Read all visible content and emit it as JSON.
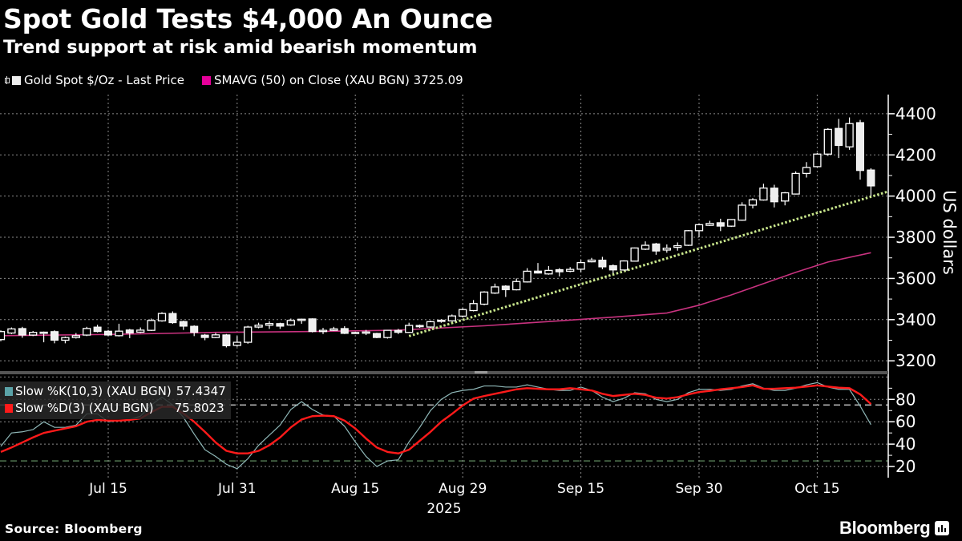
{
  "title": "Spot Gold Tests $4,000 An Ounce",
  "subtitle": "Trend support at risk amid bearish momentum",
  "legend": {
    "price_label": "Gold Spot $/Oz - Last Price",
    "sma_label": "SMAVG (50)  on Close (XAU BGN) 3725.09"
  },
  "stoch_legend": {
    "k_label": "Slow %K(10,3) (XAU BGN)",
    "k_value": "57.4347",
    "d_label": "Slow %D(3) (XAU BGN)",
    "d_value": "75.8023"
  },
  "footer": {
    "source": "Source: Bloomberg",
    "brand": "Bloomberg"
  },
  "colors": {
    "background": "#000000",
    "candle": "#ffffff",
    "sma": "#c8327f",
    "sma_legend": "#e6009a",
    "trendline": "#c8e68c",
    "stoch_k": "#8fb8b8",
    "stoch_k_legend": "#5ba3a8",
    "stoch_d": "#ff1a1a",
    "grid": "#8a8a8a"
  },
  "chart_data": [
    {
      "type": "candlestick",
      "ylabel": "US dollars",
      "ylim": [
        3154,
        4493
      ],
      "y_ticks": [
        "3200",
        "3400",
        "3600",
        "3800",
        "4000",
        "4200",
        "4400"
      ],
      "x_ticks": [
        {
          "label": "Jul 15",
          "date": "2025-07-15"
        },
        {
          "label": "Jul 31",
          "date": "2025-07-31"
        },
        {
          "label": "Aug 15",
          "date": "2025-08-15"
        },
        {
          "label": "Aug 29",
          "date": "2025-08-29"
        },
        {
          "label": "Sep 15",
          "date": "2025-09-15"
        },
        {
          "label": "Sep 30",
          "date": "2025-09-30"
        },
        {
          "label": "Oct 15",
          "date": "2025-10-15"
        }
      ],
      "x_year_label": "2025",
      "grid": true,
      "candle_fields": [
        "date",
        "open",
        "high",
        "low",
        "close"
      ],
      "candles": [
        [
          "2025-07-01",
          3303,
          3348,
          3295,
          3342
        ],
        [
          "2025-07-02",
          3335,
          3362,
          3330,
          3355
        ],
        [
          "2025-07-03",
          3357,
          3365,
          3312,
          3325
        ],
        [
          "2025-07-04",
          3325,
          3345,
          3320,
          3338
        ],
        [
          "2025-07-07",
          3337,
          3342,
          3290,
          3339
        ],
        [
          "2025-07-08",
          3342,
          3348,
          3285,
          3300
        ],
        [
          "2025-07-09",
          3300,
          3318,
          3285,
          3313
        ],
        [
          "2025-07-10",
          3313,
          3335,
          3308,
          3322
        ],
        [
          "2025-07-11",
          3325,
          3365,
          3320,
          3357
        ],
        [
          "2025-07-14",
          3364,
          3375,
          3338,
          3342
        ],
        [
          "2025-07-15",
          3344,
          3350,
          3320,
          3325
        ],
        [
          "2025-07-16",
          3322,
          3380,
          3318,
          3344
        ],
        [
          "2025-07-17",
          3350,
          3355,
          3310,
          3335
        ],
        [
          "2025-07-18",
          3339,
          3362,
          3335,
          3349
        ],
        [
          "2025-07-21",
          3348,
          3405,
          3345,
          3396
        ],
        [
          "2025-07-22",
          3394,
          3436,
          3390,
          3430
        ],
        [
          "2025-07-23",
          3430,
          3440,
          3380,
          3385
        ],
        [
          "2025-07-24",
          3391,
          3395,
          3350,
          3368
        ],
        [
          "2025-07-25",
          3368,
          3372,
          3320,
          3338
        ],
        [
          "2025-07-28",
          3325,
          3330,
          3300,
          3313
        ],
        [
          "2025-07-29",
          3313,
          3335,
          3310,
          3326
        ],
        [
          "2025-07-30",
          3326,
          3330,
          3265,
          3273
        ],
        [
          "2025-07-31",
          3275,
          3320,
          3268,
          3290
        ],
        [
          "2025-08-01",
          3290,
          3370,
          3283,
          3364
        ],
        [
          "2025-08-04",
          3364,
          3385,
          3358,
          3373
        ],
        [
          "2025-08-05",
          3373,
          3392,
          3355,
          3381
        ],
        [
          "2025-08-06",
          3381,
          3385,
          3355,
          3368
        ],
        [
          "2025-08-07",
          3374,
          3405,
          3370,
          3396
        ],
        [
          "2025-08-08",
          3400,
          3405,
          3380,
          3402
        ],
        [
          "2025-08-11",
          3404,
          3406,
          3338,
          3342
        ],
        [
          "2025-08-12",
          3345,
          3360,
          3330,
          3348
        ],
        [
          "2025-08-13",
          3348,
          3365,
          3345,
          3355
        ],
        [
          "2025-08-14",
          3357,
          3368,
          3330,
          3333
        ],
        [
          "2025-08-15",
          3338,
          3340,
          3335,
          3337
        ],
        [
          "2025-08-18",
          3335,
          3350,
          3325,
          3340
        ],
        [
          "2025-08-19",
          3333,
          3336,
          3310,
          3313
        ],
        [
          "2025-08-20",
          3313,
          3350,
          3308,
          3348
        ],
        [
          "2025-08-21",
          3348,
          3355,
          3330,
          3338
        ],
        [
          "2025-08-22",
          3338,
          3385,
          3335,
          3372
        ],
        [
          "2025-08-25",
          3372,
          3376,
          3360,
          3365
        ],
        [
          "2025-08-26",
          3364,
          3395,
          3360,
          3390
        ],
        [
          "2025-08-27",
          3394,
          3402,
          3385,
          3397
        ],
        [
          "2025-08-28",
          3394,
          3425,
          3390,
          3418
        ],
        [
          "2025-08-29",
          3417,
          3455,
          3410,
          3449
        ],
        [
          "2025-09-01",
          3444,
          3495,
          3440,
          3478
        ],
        [
          "2025-09-02",
          3475,
          3538,
          3470,
          3534
        ],
        [
          "2025-09-03",
          3529,
          3575,
          3525,
          3559
        ],
        [
          "2025-09-04",
          3563,
          3567,
          3510,
          3545
        ],
        [
          "2025-09-05",
          3545,
          3600,
          3542,
          3585
        ],
        [
          "2025-09-08",
          3583,
          3650,
          3580,
          3635
        ],
        [
          "2025-09-09",
          3636,
          3675,
          3624,
          3626
        ],
        [
          "2025-09-10",
          3622,
          3660,
          3618,
          3639
        ],
        [
          "2025-09-11",
          3643,
          3650,
          3610,
          3632
        ],
        [
          "2025-09-12",
          3635,
          3655,
          3630,
          3644
        ],
        [
          "2025-09-15",
          3645,
          3690,
          3630,
          3677
        ],
        [
          "2025-09-16",
          3681,
          3700,
          3678,
          3689
        ],
        [
          "2025-09-17",
          3689,
          3705,
          3645,
          3656
        ],
        [
          "2025-09-18",
          3662,
          3668,
          3625,
          3641
        ],
        [
          "2025-09-19",
          3641,
          3688,
          3638,
          3685
        ],
        [
          "2025-09-22",
          3684,
          3750,
          3682,
          3748
        ],
        [
          "2025-09-23",
          3742,
          3780,
          3738,
          3761
        ],
        [
          "2025-09-24",
          3768,
          3773,
          3715,
          3733
        ],
        [
          "2025-09-25",
          3738,
          3765,
          3725,
          3747
        ],
        [
          "2025-09-26",
          3751,
          3775,
          3735,
          3759
        ],
        [
          "2025-09-29",
          3761,
          3835,
          3758,
          3832
        ],
        [
          "2025-09-30",
          3832,
          3865,
          3800,
          3861
        ],
        [
          "2025-10-01",
          3858,
          3880,
          3855,
          3867
        ],
        [
          "2025-10-02",
          3871,
          3890,
          3830,
          3854
        ],
        [
          "2025-10-03",
          3854,
          3888,
          3850,
          3886
        ],
        [
          "2025-10-06",
          3883,
          3970,
          3880,
          3956
        ],
        [
          "2025-10-07",
          3956,
          3990,
          3940,
          3982
        ],
        [
          "2025-10-08",
          3981,
          4060,
          3978,
          4039
        ],
        [
          "2025-10-09",
          4039,
          4055,
          3945,
          3972
        ],
        [
          "2025-10-10",
          3976,
          4020,
          3955,
          4016
        ],
        [
          "2025-10-13",
          4010,
          4120,
          4008,
          4110
        ],
        [
          "2025-10-14",
          4110,
          4165,
          4090,
          4139
        ],
        [
          "2025-10-15",
          4143,
          4210,
          4140,
          4204
        ],
        [
          "2025-10-16",
          4204,
          4330,
          4195,
          4324
        ],
        [
          "2025-10-17",
          4329,
          4375,
          4185,
          4246
        ],
        [
          "2025-10-20",
          4239,
          4382,
          4225,
          4352
        ],
        [
          "2025-10-21",
          4357,
          4370,
          4080,
          4124
        ],
        [
          "2025-10-22",
          4127,
          4135,
          4000,
          4049
        ]
      ],
      "sma50": [
        [
          "2025-07-01",
          3322
        ],
        [
          "2025-07-15",
          3328
        ],
        [
          "2025-07-29",
          3338
        ],
        [
          "2025-08-12",
          3343
        ],
        [
          "2025-08-21",
          3349
        ],
        [
          "2025-09-02",
          3370
        ],
        [
          "2025-09-11",
          3394
        ],
        [
          "2025-09-18",
          3412
        ],
        [
          "2025-09-25",
          3432
        ],
        [
          "2025-09-30",
          3470
        ],
        [
          "2025-10-03",
          3520
        ],
        [
          "2025-10-08",
          3575
        ],
        [
          "2025-10-13",
          3630
        ],
        [
          "2025-10-16",
          3680
        ],
        [
          "2025-10-22",
          3725.09
        ]
      ],
      "trendline": [
        [
          "2025-08-22",
          3320
        ],
        [
          "2025-10-22",
          3997
        ]
      ]
    },
    {
      "type": "line",
      "ylim": [
        10,
        101
      ],
      "y_ticks": [
        "20",
        "40",
        "60",
        "80"
      ],
      "reference_lines": [
        75,
        25
      ],
      "grid": true,
      "series": [
        {
          "name": "Slow %K(10,3) (XAU BGN)",
          "values": [
            38,
            50,
            51,
            53,
            60,
            55,
            55,
            57,
            67,
            67,
            60,
            61,
            62,
            65,
            75,
            82,
            75,
            64,
            49,
            35,
            29,
            22,
            18,
            27,
            39,
            48,
            57,
            71,
            78,
            71,
            66,
            65,
            56,
            42,
            29,
            20,
            25,
            26,
            42,
            55,
            70,
            80,
            86,
            88,
            89,
            92,
            92,
            91,
            91,
            93,
            91,
            89,
            88,
            88,
            91,
            88,
            82,
            78,
            81,
            86,
            85,
            80,
            78,
            80,
            86,
            89,
            89,
            88,
            89,
            92,
            94,
            90,
            88,
            88,
            90,
            93,
            95,
            91,
            89,
            89,
            74,
            57.4347
          ]
        },
        {
          "name": "Slow %D(3) (XAU BGN)",
          "values": [
            33,
            37,
            41.5,
            46,
            50,
            52,
            54,
            56,
            60,
            61.6,
            61,
            61,
            61.6,
            63,
            68.5,
            73.4,
            73.4,
            67.3,
            60,
            51,
            41.5,
            34,
            31.7,
            31.7,
            34,
            39,
            46,
            55,
            62,
            65,
            65.5,
            65,
            61,
            54,
            45,
            37,
            33,
            31.7,
            35,
            43,
            51,
            60,
            67,
            74.6,
            80.7,
            83,
            85,
            87,
            89,
            90,
            89.5,
            89,
            89,
            90,
            89,
            88,
            85,
            83,
            84,
            85,
            84,
            81.5,
            80.8,
            82,
            84.5,
            86.5,
            87.6,
            89,
            90,
            91,
            92.5,
            89.5,
            89.5,
            90,
            90.5,
            91.5,
            92.5,
            91.5,
            90.5,
            90,
            84.5,
            75.8023
          ]
        }
      ]
    }
  ]
}
